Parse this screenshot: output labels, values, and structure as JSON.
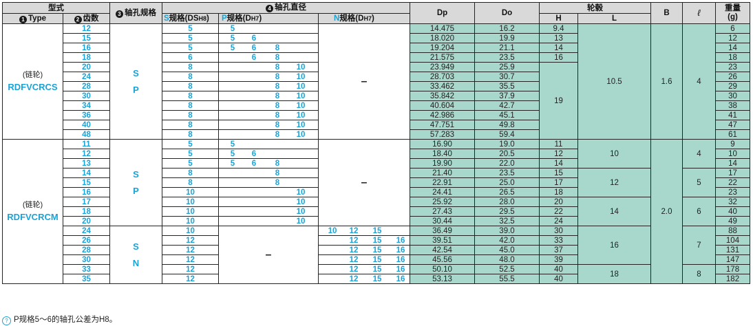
{
  "header": {
    "model": "型式",
    "type_label": "Type",
    "type_mark": "1",
    "teeth_label": "齿数",
    "teeth_mark": "2",
    "bore_spec_label": "轴孔规格",
    "bore_spec_mark": "3",
    "bore_dia_label": "轴孔直径",
    "bore_dia_mark": "4",
    "s_prefix": "S",
    "s_label": "规格(D",
    "s_sub": "H8",
    "p_prefix": "P",
    "p_label": "规格(D",
    "p_sub": "H7",
    "n_prefix": "N",
    "n_label": "规格(D",
    "n_sub": "H7",
    "close": ")",
    "dp": "Dp",
    "do": "Do",
    "hub": "轮毂",
    "h": "H",
    "l": "L",
    "b": "B",
    "ell": "ℓ",
    "weight": "重量",
    "weight_unit": "(g)"
  },
  "group1": {
    "type_prefix": "(链轮)",
    "type_name": "RDFVCRCS",
    "spec_letters": [
      "S",
      "P"
    ],
    "n_dash": "–",
    "l_value": "10.5",
    "b_value": "1.6",
    "ell_value": "4",
    "h_merged": "19",
    "rows": [
      {
        "teeth": "12",
        "s": "5",
        "p": [
          "5",
          "",
          "",
          ""
        ],
        "dp": "14.475",
        "do": "16.2",
        "h": "9.4",
        "w": "6"
      },
      {
        "teeth": "15",
        "s": "5",
        "p": [
          "5",
          "6",
          "",
          ""
        ],
        "dp": "18.020",
        "do": "19.9",
        "h": "13",
        "w": "12"
      },
      {
        "teeth": "16",
        "s": "5",
        "p": [
          "5",
          "6",
          "8",
          ""
        ],
        "dp": "19.204",
        "do": "21.1",
        "h": "14",
        "w": "14"
      },
      {
        "teeth": "18",
        "s": "6",
        "p": [
          "",
          "6",
          "8",
          ""
        ],
        "dp": "21.575",
        "do": "23.5",
        "h": "16",
        "w": "18"
      },
      {
        "teeth": "20",
        "s": "8",
        "p": [
          "",
          "",
          "8",
          "10"
        ],
        "dp": "23.949",
        "do": "25.9",
        "w": "23"
      },
      {
        "teeth": "24",
        "s": "8",
        "p": [
          "",
          "",
          "8",
          "10"
        ],
        "dp": "28.703",
        "do": "30.7",
        "w": "26"
      },
      {
        "teeth": "28",
        "s": "8",
        "p": [
          "",
          "",
          "8",
          "10"
        ],
        "dp": "33.462",
        "do": "35.5",
        "w": "29"
      },
      {
        "teeth": "30",
        "s": "8",
        "p": [
          "",
          "",
          "8",
          "10"
        ],
        "dp": "35.842",
        "do": "37.9",
        "w": "30"
      },
      {
        "teeth": "34",
        "s": "8",
        "p": [
          "",
          "",
          "8",
          "10"
        ],
        "dp": "40.604",
        "do": "42.7",
        "w": "38"
      },
      {
        "teeth": "36",
        "s": "8",
        "p": [
          "",
          "",
          "8",
          "10"
        ],
        "dp": "42.986",
        "do": "45.1",
        "w": "41"
      },
      {
        "teeth": "40",
        "s": "8",
        "p": [
          "",
          "",
          "8",
          "10"
        ],
        "dp": "47.751",
        "do": "49.8",
        "w": "47"
      },
      {
        "teeth": "48",
        "s": "8",
        "p": [
          "",
          "",
          "8",
          "10"
        ],
        "dp": "57.283",
        "do": "59.4",
        "w": "61"
      }
    ]
  },
  "group2": {
    "type_prefix": "(链轮)",
    "type_name": "RDFVCRCM",
    "spec_letters_a": [
      "S",
      "P"
    ],
    "spec_letters_b": [
      "S",
      "N"
    ],
    "n_dash": "–",
    "p_dash": "–",
    "b_value": "2.0",
    "l_values": [
      "10",
      "12",
      "14",
      "16",
      "18"
    ],
    "ell_values": [
      "4",
      "5",
      "6",
      "7",
      "8"
    ],
    "rows": [
      {
        "teeth": "11",
        "s": "5",
        "p": [
          "5",
          "",
          "",
          ""
        ],
        "n": null,
        "dp": "16.90",
        "do": "19.0",
        "h": "11",
        "w": "9"
      },
      {
        "teeth": "12",
        "s": "5",
        "p": [
          "5",
          "6",
          "",
          ""
        ],
        "n": null,
        "dp": "18.40",
        "do": "20.5",
        "h": "12",
        "w": "10"
      },
      {
        "teeth": "13",
        "s": "5",
        "p": [
          "5",
          "6",
          "8",
          ""
        ],
        "n": null,
        "dp": "19.90",
        "do": "22.0",
        "h": "14",
        "w": "14"
      },
      {
        "teeth": "14",
        "s": "8",
        "p": [
          "",
          "",
          "8",
          ""
        ],
        "n": null,
        "dp": "21.40",
        "do": "23.5",
        "h": "15",
        "w": "17"
      },
      {
        "teeth": "15",
        "s": "8",
        "p": [
          "",
          "",
          "8",
          ""
        ],
        "n": null,
        "dp": "22.91",
        "do": "25.0",
        "h": "17",
        "w": "22"
      },
      {
        "teeth": "16",
        "s": "10",
        "p": [
          "",
          "",
          "",
          "10"
        ],
        "n": null,
        "dp": "24.41",
        "do": "26.5",
        "h": "18",
        "w": "23"
      },
      {
        "teeth": "17",
        "s": "10",
        "p": [
          "",
          "",
          "",
          "10"
        ],
        "n": null,
        "dp": "25.92",
        "do": "28.0",
        "h": "20",
        "w": "32"
      },
      {
        "teeth": "18",
        "s": "10",
        "p": [
          "",
          "",
          "",
          "10"
        ],
        "n": null,
        "dp": "27.43",
        "do": "29.5",
        "h": "22",
        "w": "40"
      },
      {
        "teeth": "20",
        "s": "10",
        "p": [
          "",
          "",
          "",
          "10"
        ],
        "n": null,
        "dp": "30.44",
        "do": "32.5",
        "h": "24",
        "w": "49"
      },
      {
        "teeth": "24",
        "s": "10",
        "p": null,
        "n": [
          "10",
          "12",
          "15",
          ""
        ],
        "dp": "36.49",
        "do": "39.0",
        "h": "30",
        "w": "88"
      },
      {
        "teeth": "26",
        "s": "12",
        "p": null,
        "n": [
          "",
          "12",
          "15",
          "16"
        ],
        "dp": "39.51",
        "do": "42.0",
        "h": "33",
        "w": "104"
      },
      {
        "teeth": "28",
        "s": "12",
        "p": null,
        "n": [
          "",
          "12",
          "15",
          "16"
        ],
        "dp": "42.54",
        "do": "45.0",
        "h": "37",
        "w": "131"
      },
      {
        "teeth": "30",
        "s": "12",
        "p": null,
        "n": [
          "",
          "12",
          "15",
          "16"
        ],
        "dp": "45.56",
        "do": "48.0",
        "h": "39",
        "w": "147"
      },
      {
        "teeth": "33",
        "s": "12",
        "p": null,
        "n": [
          "",
          "12",
          "15",
          "16"
        ],
        "dp": "50.10",
        "do": "52.5",
        "h": "40",
        "w": "178"
      },
      {
        "teeth": "35",
        "s": "12",
        "p": null,
        "n": [
          "",
          "12",
          "15",
          "16"
        ],
        "dp": "53.13",
        "do": "55.5",
        "h": "40",
        "w": "182"
      }
    ]
  },
  "note": {
    "icon": "hint-icon",
    "icon_glyph": "?",
    "text": "P规格5〜6的轴孔公差为H8。"
  }
}
